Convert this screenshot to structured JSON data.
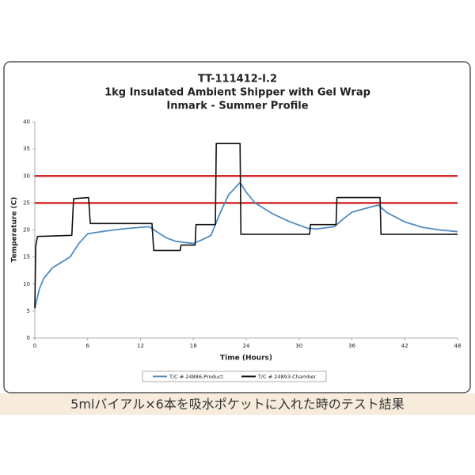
{
  "chart_data": {
    "type": "line",
    "title": [
      "TT-111412-I.2",
      "1kg Insulated Ambient Shipper with Gel Wrap",
      "Inmark - Summer Profile"
    ],
    "x_label": "Time (Hours)",
    "y_label": "Temperature (C)",
    "xlim": [
      0,
      48
    ],
    "xticks": [
      0,
      6,
      12,
      18,
      24,
      30,
      36,
      42,
      48
    ],
    "ylim": [
      0,
      40
    ],
    "yticks": [
      0,
      5,
      10,
      15,
      20,
      25,
      30,
      35,
      40
    ],
    "grid": false,
    "legend": "bottom",
    "reference_lines": [
      30,
      25
    ],
    "reference_color": "#d42b2b",
    "series": [
      {
        "name": "T/C # 24886-Product",
        "color": "#4f8cc2",
        "x": [
          0,
          0.5,
          1,
          2,
          3,
          4,
          5,
          6,
          8,
          10,
          12,
          13,
          14,
          15,
          16,
          18,
          19,
          20,
          21,
          22,
          23.3,
          24,
          25,
          27,
          29,
          31,
          32,
          34,
          35,
          36,
          38,
          39,
          40,
          42,
          44,
          46,
          48
        ],
        "values": [
          5.5,
          9,
          11,
          13,
          14,
          15,
          17.5,
          19.3,
          19.8,
          20.2,
          20.5,
          20.6,
          19.5,
          18.5,
          17.9,
          17.5,
          18.2,
          19,
          23,
          26.5,
          28.8,
          27,
          25,
          23,
          21.5,
          20.3,
          20.2,
          20.6,
          22,
          23.3,
          24.2,
          24.6,
          23.2,
          21.5,
          20.5,
          20,
          19.7
        ]
      },
      {
        "name": "T/C # 24893-Chamber",
        "color": "#111111",
        "x": [
          0,
          0.1,
          0.3,
          4.2,
          4.4,
          6.1,
          6.3,
          13.3,
          13.5,
          16.5,
          16.6,
          18.2,
          18.3,
          20.5,
          20.6,
          23.3,
          23.4,
          31.2,
          31.3,
          34.2,
          34.3,
          39.2,
          39.3,
          48
        ],
        "values": [
          5.5,
          17,
          18.8,
          19,
          25.8,
          26,
          21.2,
          21.2,
          16.2,
          16.2,
          17.2,
          17.2,
          21,
          21,
          36,
          36,
          19.2,
          19.2,
          21,
          21,
          26,
          26,
          19.2,
          19.2
        ]
      }
    ]
  },
  "caption": "5mlバイアル×6本を吸水ポケットに入れた時のテスト結果"
}
